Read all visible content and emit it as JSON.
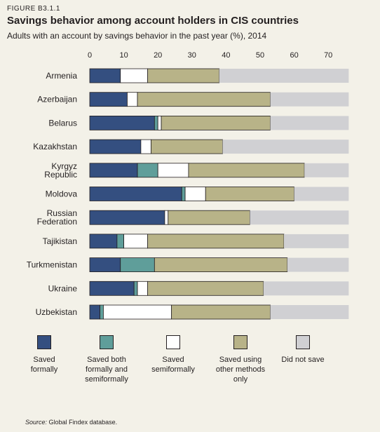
{
  "figure_label": "FIGURE B3.1.1",
  "source_prefix": "Source:",
  "source_text": "Global Findex database.",
  "chart_data": {
    "type": "bar",
    "orientation": "horizontal",
    "stacked": true,
    "title": "Savings behavior among account holders in CIS countries",
    "subtitle": "Adults with an account by savings behavior in the past year (%), 2014",
    "xlim": [
      0,
      76
    ],
    "xticks": [
      0,
      10,
      20,
      30,
      40,
      50,
      60,
      70
    ],
    "grid": false,
    "legend_position": "bottom",
    "categories": [
      "Armenia",
      "Azerbaijan",
      "Belarus",
      "Kazakhstan",
      "Kyrgyz Republic",
      "Moldova",
      "Russian Federation",
      "Tajikistan",
      "Turkmenistan",
      "Ukraine",
      "Uzbekistan"
    ],
    "series": [
      {
        "name": "Saved formally",
        "color": "#344f80",
        "values": [
          9,
          11,
          19,
          15,
          14,
          27,
          22,
          8,
          9,
          13,
          3
        ]
      },
      {
        "name": "Saved both formally and semiformally",
        "color": "#5f9e9a",
        "values": [
          0,
          0,
          1,
          0,
          6,
          1,
          0,
          2,
          10,
          1,
          1
        ]
      },
      {
        "name": "Saved semiformally",
        "color": "#ffffff",
        "values": [
          8,
          3,
          1,
          3,
          9,
          6,
          1,
          7,
          0,
          3,
          20
        ]
      },
      {
        "name": "Saved using other methods only",
        "color": "#b8b388",
        "values": [
          21,
          39,
          32,
          21,
          34,
          26,
          24,
          40,
          39,
          34,
          29
        ]
      },
      {
        "name": "Did not save",
        "color": "#d0d0d3",
        "values": [
          38,
          23,
          23,
          37,
          13,
          16,
          29,
          19,
          18,
          25,
          23
        ]
      }
    ]
  }
}
